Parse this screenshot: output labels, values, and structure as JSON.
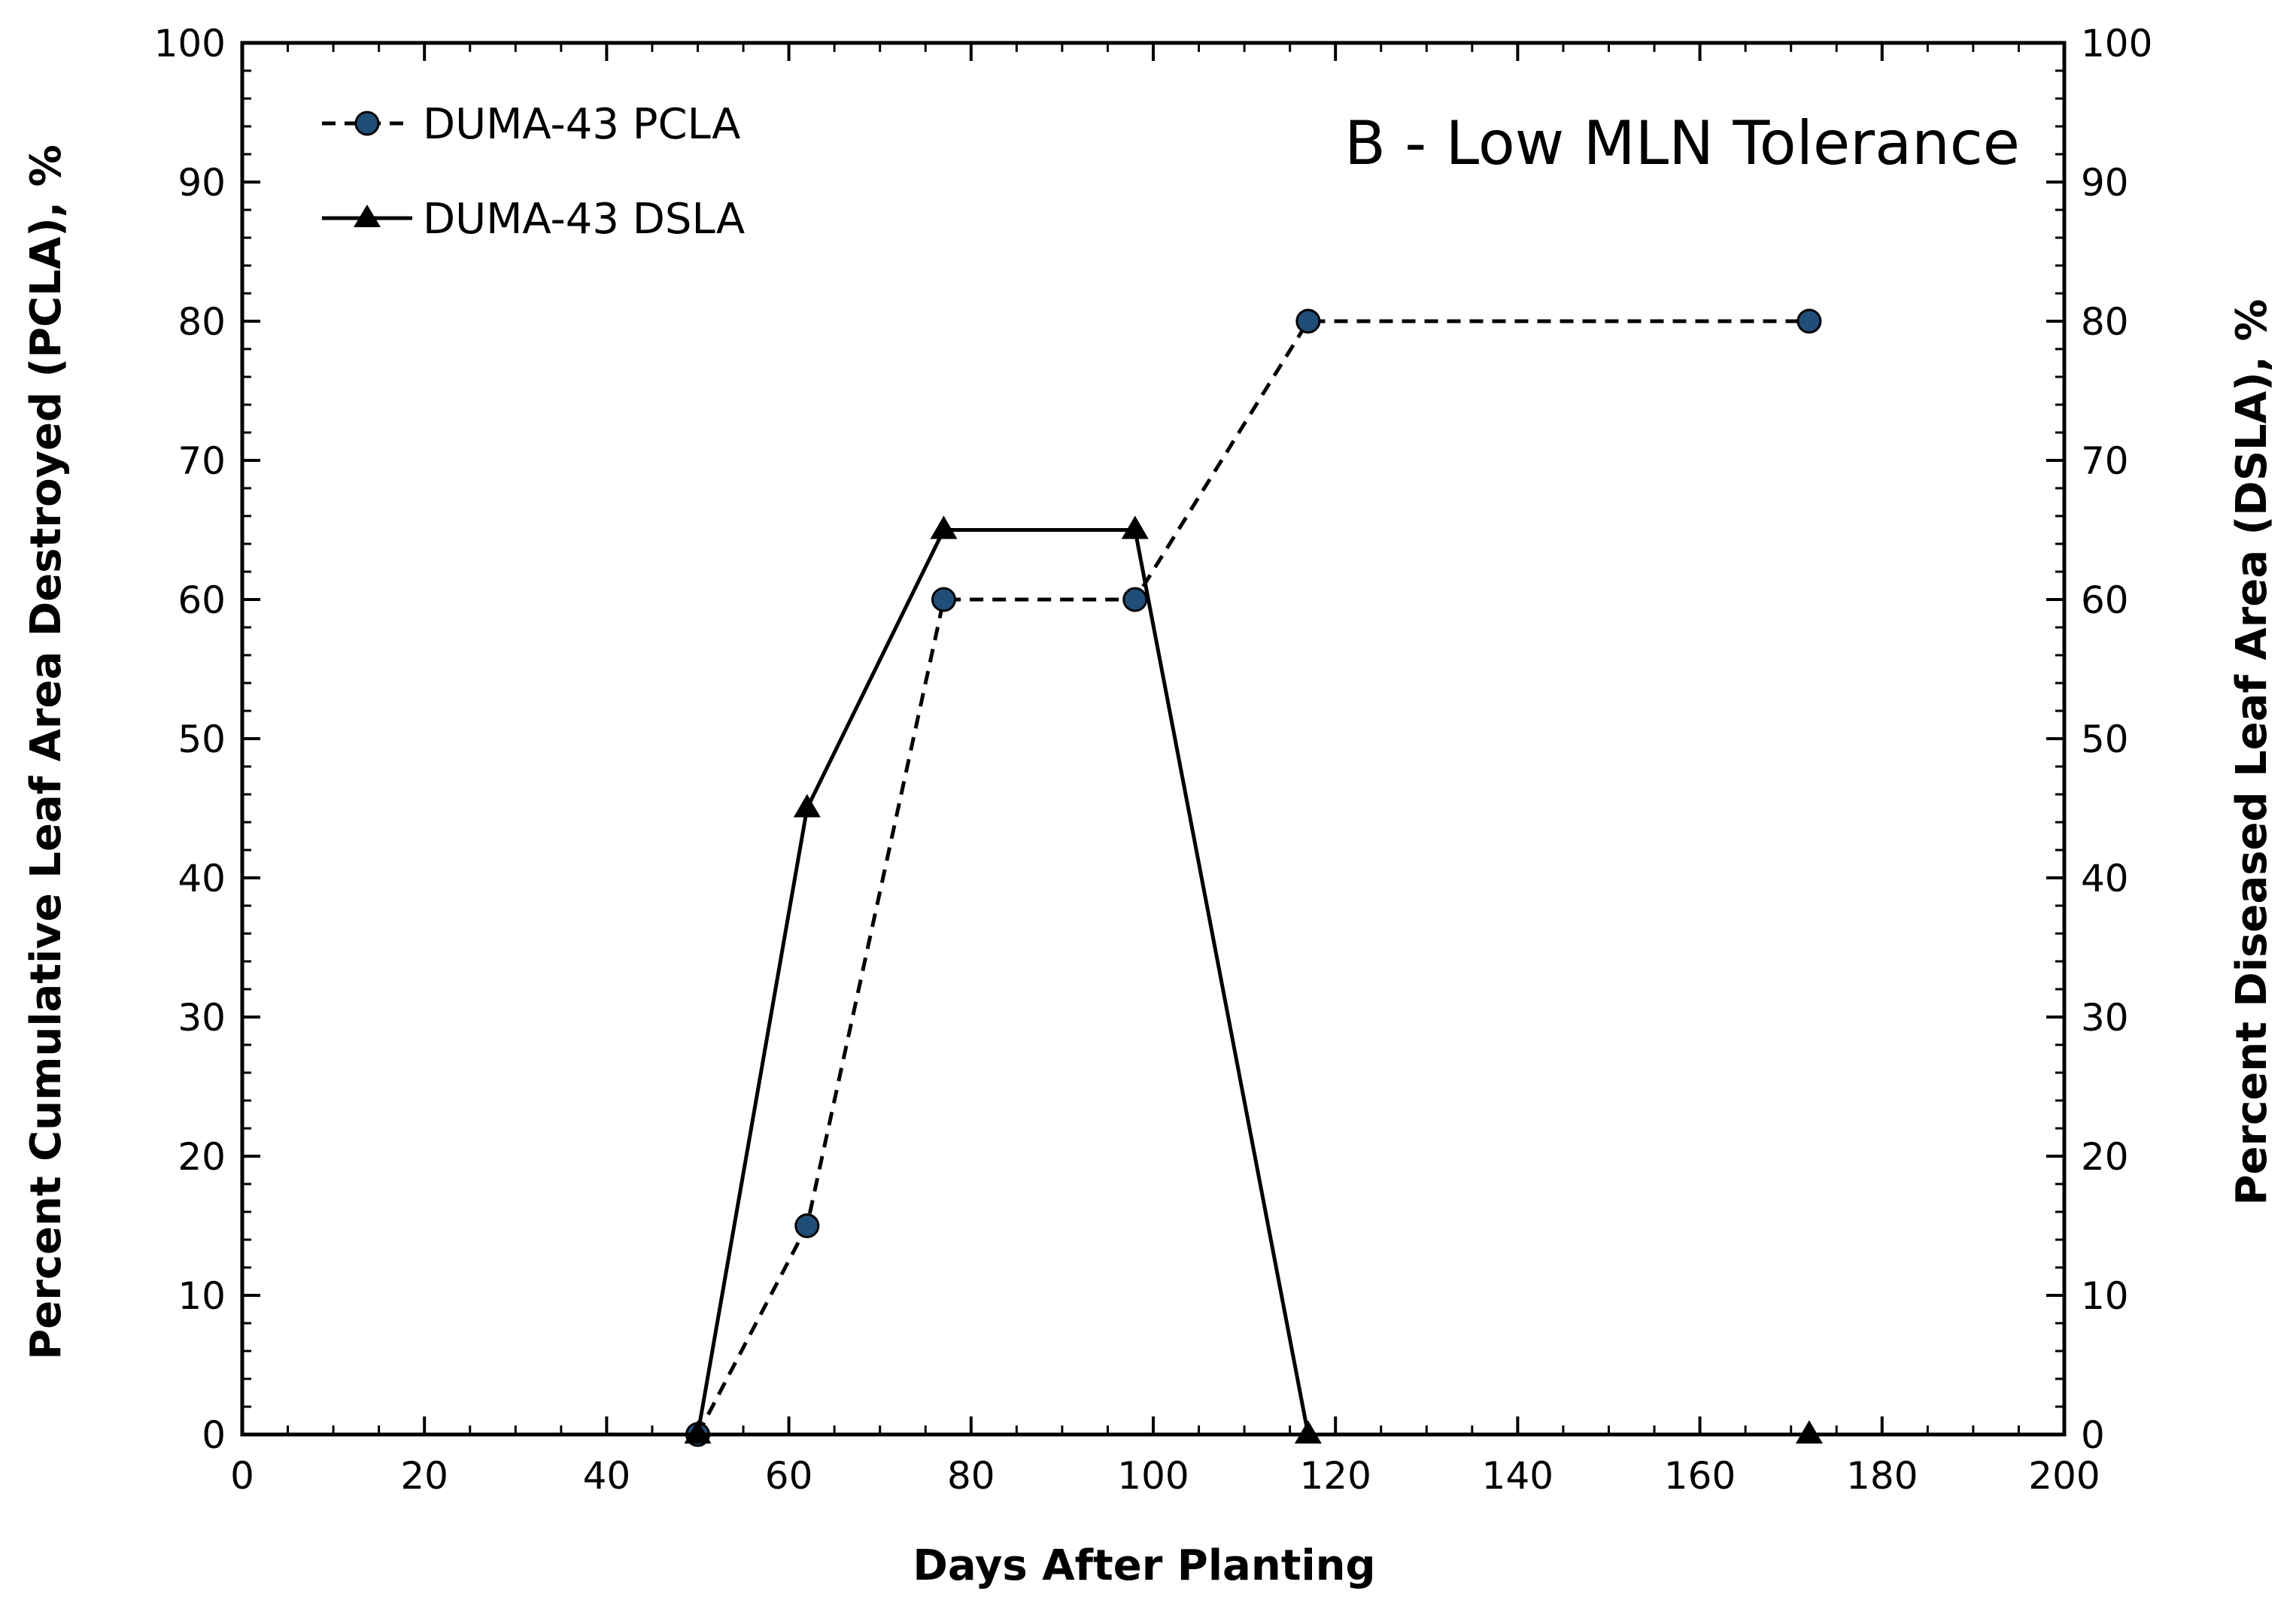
{
  "chart_data": {
    "type": "line",
    "title": "B - Low MLN Tolerance",
    "xlabel": "Days After Planting",
    "ylabel": "Percent Cumulative Leaf Area Destroyed (PCLA), %",
    "y2label": "Percent Diseased Leaf Area (DSLA), %",
    "xlim": [
      0,
      200
    ],
    "ylim": [
      0,
      100
    ],
    "y2lim": [
      0,
      100
    ],
    "x_ticks": [
      0,
      20,
      40,
      60,
      80,
      100,
      120,
      140,
      160,
      180,
      200
    ],
    "y_ticks": [
      0,
      10,
      20,
      30,
      40,
      50,
      60,
      70,
      80,
      90,
      100
    ],
    "x_tick_labels": [
      "0",
      "20",
      "40",
      "60",
      "80",
      "100",
      "120",
      "140",
      "160",
      "180",
      "200"
    ],
    "y_tick_labels": [
      "0",
      "10",
      "20",
      "30",
      "40",
      "50",
      "60",
      "70",
      "80",
      "90",
      "100"
    ],
    "grid": false,
    "legend_position": "top-left",
    "series": [
      {
        "name": "DUMA-43 PCLA",
        "style": "dashed",
        "marker": "circle",
        "marker_color": "#1f4e79",
        "line_color": "#000000",
        "x": [
          50,
          62,
          77,
          98,
          117,
          172
        ],
        "y": [
          0,
          15,
          60,
          60,
          80,
          80
        ]
      },
      {
        "name": "DUMA-43 DSLA",
        "style": "solid",
        "marker": "triangle",
        "marker_color": "#000000",
        "line_color": "#000000",
        "x": [
          50,
          62,
          77,
          98,
          117,
          172
        ],
        "y": [
          0,
          45,
          65,
          65,
          0,
          0
        ]
      }
    ]
  }
}
